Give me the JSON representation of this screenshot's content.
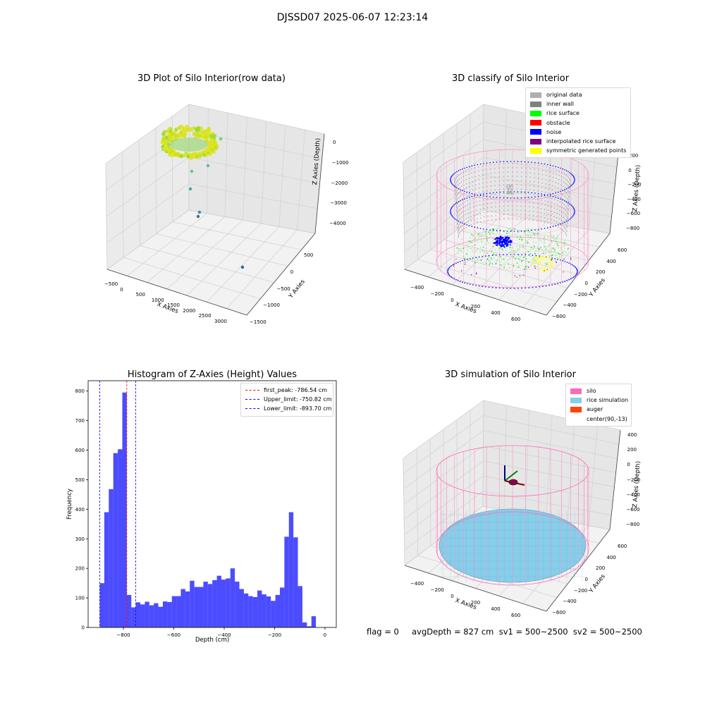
{
  "figure": {
    "suptitle": "DJSSD07 2025-06-07 12:23:14",
    "footer": "flag = 0     avgDepth = 827 cm  sv1 = 500~2500  sv2 = 500~2500"
  },
  "panel_raw": {
    "title": "3D Plot of Silo Interior(row data)",
    "xlabel": "X Axies",
    "ylabel": "Y Axies",
    "zlabel": "Z Axies (Depth)",
    "xticks": [
      "−500",
      "0",
      "500",
      "1000",
      "1500",
      "2000",
      "2500",
      "3000"
    ],
    "yticks": [
      "500",
      "0",
      "−500",
      "−1000",
      "−1500"
    ],
    "zticks": [
      "0",
      "−1000",
      "−2000",
      "−3000",
      "−4000"
    ]
  },
  "panel_class": {
    "title": "3D classify of Silo Interior",
    "xlabel": "X Axies",
    "ylabel": "Y Axies",
    "zlabel": "Z Axies (Depth)",
    "xticks": [
      "−400",
      "−200",
      "0",
      "200",
      "400",
      "600"
    ],
    "yticks": [
      "600",
      "400",
      "200",
      "0",
      "−200",
      "−400",
      "−600"
    ],
    "zticks": [
      "200",
      "0",
      "−200",
      "−400",
      "−600",
      "−800"
    ],
    "legend": [
      {
        "label": "original data",
        "color": "#b0b0b0"
      },
      {
        "label": "inner wall",
        "color": "#808080"
      },
      {
        "label": "rice surface",
        "color": "#00ff00"
      },
      {
        "label": "obstacle",
        "color": "#ff0000"
      },
      {
        "label": "noise",
        "color": "#0000ff"
      },
      {
        "label": "interpolated rice surface",
        "color": "#800080"
      },
      {
        "label": "symmetric generated points",
        "color": "#ffff00"
      }
    ]
  },
  "panel_sim": {
    "title": "3D simulation of Silo Interior",
    "xlabel": "X Axies",
    "ylabel": "Y Axies",
    "zlabel": "Z Axies (Depth)",
    "xticks": [
      "−400",
      "−200",
      "0",
      "200",
      "400",
      "600"
    ],
    "yticks": [
      "600",
      "400",
      "200",
      "0",
      "−200",
      "−400",
      "−600"
    ],
    "zticks": [
      "400",
      "200",
      "0",
      "−200",
      "−400",
      "−600",
      "−800"
    ],
    "legend": [
      {
        "label": "silo",
        "color": "#ff69b4"
      },
      {
        "label": "rice simulation",
        "color": "#87ceeb"
      },
      {
        "label": "auger",
        "color": "#ff4500"
      },
      {
        "label": "center(90,-13)",
        "color": "#ffffff"
      }
    ]
  },
  "chart_data": {
    "type": "bar",
    "title": "Histogram of Z-Axies (Height) Values",
    "xlabel": "Depth (cm)",
    "ylabel": "Frequency",
    "xlim": [
      -940,
      45
    ],
    "ylim": [
      0,
      835
    ],
    "xticks": [
      -800,
      -600,
      -400,
      -200,
      0
    ],
    "xtick_labels": [
      "−800",
      "−600",
      "−400",
      "−200",
      "0"
    ],
    "yticks": [
      0,
      100,
      200,
      300,
      400,
      500,
      600,
      700,
      800
    ],
    "bar_color": "#0000ff",
    "bar_opacity": 0.7,
    "bin_start": -893.7,
    "bin_width": 17.87,
    "counts": [
      150,
      390,
      468,
      590,
      603,
      795,
      110,
      68,
      85,
      78,
      87,
      75,
      82,
      70,
      88,
      86,
      106,
      106,
      130,
      122,
      158,
      137,
      137,
      155,
      147,
      160,
      175,
      162,
      166,
      200,
      155,
      130,
      115,
      106,
      103,
      125,
      112,
      105,
      90,
      110,
      135,
      307,
      390,
      305,
      140,
      17,
      4,
      38
    ],
    "lines": [
      {
        "label": "first_peak: -786.54 cm",
        "x": -786.54,
        "color": "#ff0000"
      },
      {
        "label": "Upper_limit: -750.82 cm",
        "x": -750.82,
        "color": "#0000ff"
      },
      {
        "label": "Lower_limit: -893.70 cm",
        "x": -893.7,
        "color": "#0000ff"
      }
    ],
    "legend_position": "upper right"
  }
}
